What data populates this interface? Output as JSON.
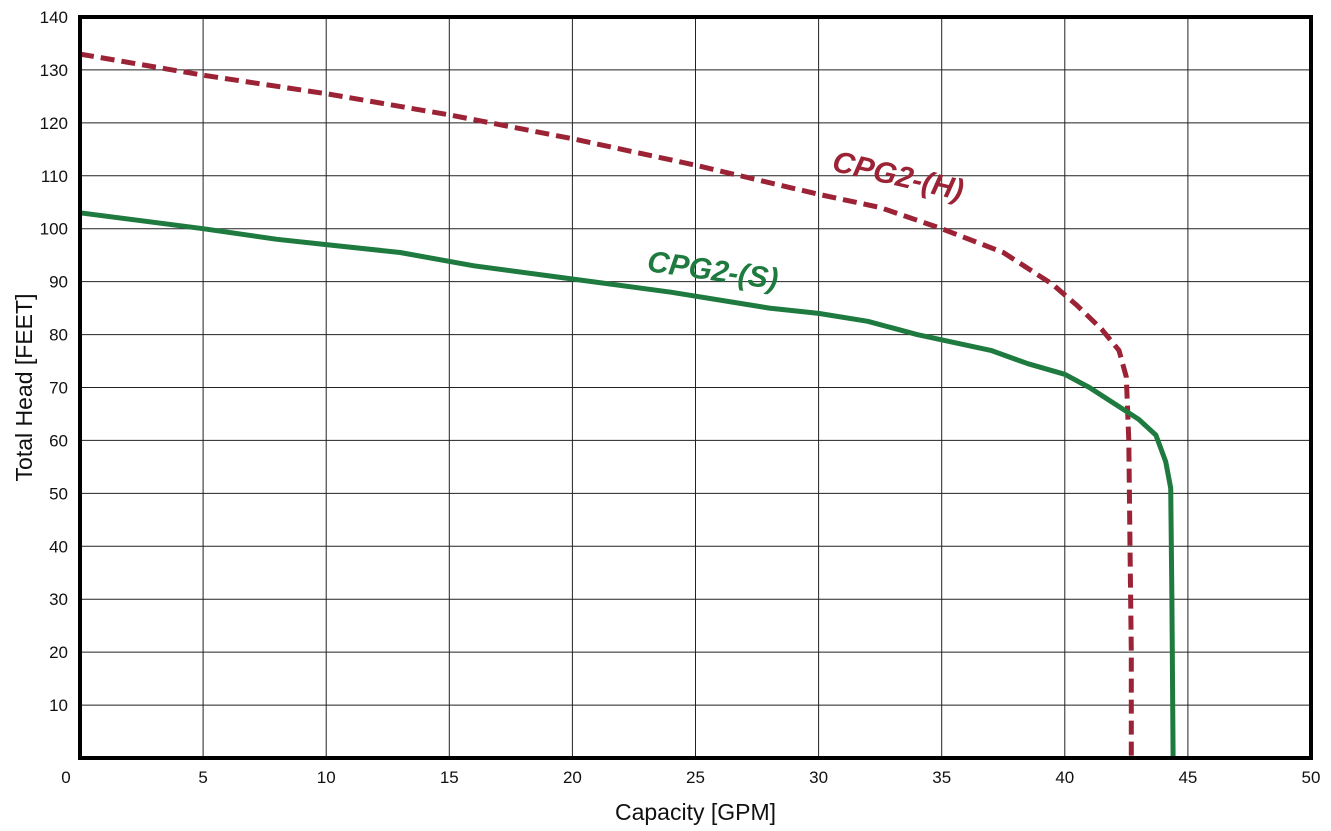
{
  "chart_data": {
    "type": "line",
    "xlabel": "Capacity [GPM]",
    "ylabel": "Total Head [FEET]",
    "xlim": [
      0,
      50
    ],
    "ylim": [
      0,
      140
    ],
    "x_ticks": [
      "0",
      "5",
      "10",
      "15",
      "20",
      "25",
      "30",
      "35",
      "40",
      "45",
      "50"
    ],
    "y_ticks": [
      "10",
      "20",
      "30",
      "40",
      "50",
      "60",
      "70",
      "80",
      "90",
      "100",
      "110",
      "120",
      "130",
      "140"
    ],
    "grid": true,
    "legend": "none",
    "series": [
      {
        "name": "CPG2-(H)",
        "color": "#9b2335",
        "style": "dashed",
        "points": [
          [
            0,
            133
          ],
          [
            5,
            129
          ],
          [
            10,
            125.5
          ],
          [
            15,
            121.5
          ],
          [
            20,
            117
          ],
          [
            25,
            112
          ],
          [
            30,
            106.5
          ],
          [
            32.5,
            104
          ],
          [
            35,
            100
          ],
          [
            37.5,
            95.5
          ],
          [
            39.5,
            89.5
          ],
          [
            40.5,
            85.5
          ],
          [
            41.5,
            81
          ],
          [
            42.2,
            77
          ],
          [
            42.5,
            72
          ],
          [
            42.6,
            60
          ],
          [
            42.65,
            40
          ],
          [
            42.7,
            20
          ],
          [
            42.7,
            0
          ]
        ],
        "label_x": 30.5,
        "label_y": 111,
        "label_angle": 13
      },
      {
        "name": "CPG2-(S)",
        "color": "#1e7a3e",
        "style": "solid",
        "points": [
          [
            0,
            103
          ],
          [
            5,
            100
          ],
          [
            8,
            98
          ],
          [
            10,
            97
          ],
          [
            13,
            95.5
          ],
          [
            16,
            93
          ],
          [
            20,
            90.5
          ],
          [
            24,
            88
          ],
          [
            28,
            85
          ],
          [
            30,
            84
          ],
          [
            32,
            82.5
          ],
          [
            34,
            80
          ],
          [
            37,
            77
          ],
          [
            38.5,
            74.5
          ],
          [
            40,
            72.5
          ],
          [
            41,
            70
          ],
          [
            42,
            67
          ],
          [
            43,
            64
          ],
          [
            43.7,
            61
          ],
          [
            44.1,
            56
          ],
          [
            44.3,
            51
          ],
          [
            44.35,
            30
          ],
          [
            44.4,
            0
          ]
        ],
        "label_x": 23,
        "label_y": 92,
        "label_angle": 8
      }
    ]
  }
}
